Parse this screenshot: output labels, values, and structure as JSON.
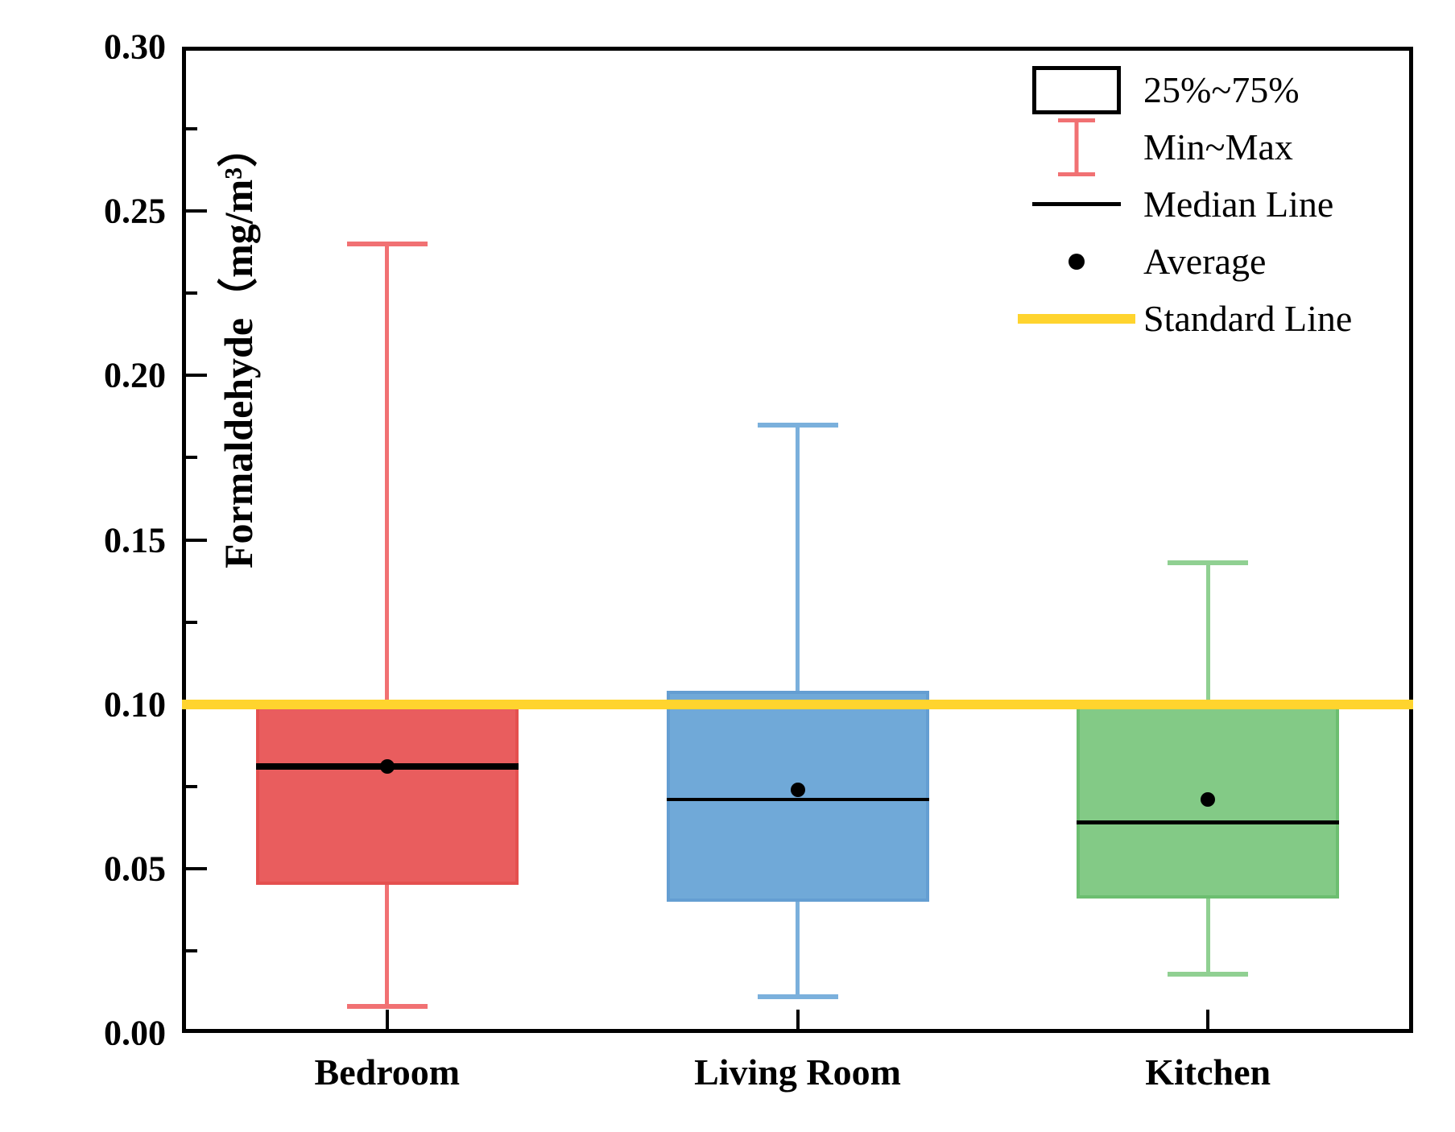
{
  "chart_data": {
    "type": "box",
    "title": "",
    "xlabel": "",
    "ylabel": "Formaldehyde（mg/m³）",
    "ylim": [
      0.0,
      0.3
    ],
    "ytick_step": 0.05,
    "ytick_minor_step": 0.025,
    "ytick_labels": [
      "0.00",
      "0.05",
      "0.10",
      "0.15",
      "0.20",
      "0.25",
      "0.30"
    ],
    "categories": [
      "Bedroom",
      "Living Room",
      "Kitchen"
    ],
    "series": [
      {
        "name": "Bedroom",
        "min": 0.008,
        "q1": 0.045,
        "median": 0.081,
        "mean": 0.081,
        "q3": 0.1,
        "max": 0.24,
        "fill": "#E95D5E",
        "edge": "#E4504F",
        "whisker": "#F17173"
      },
      {
        "name": "Living Room",
        "min": 0.011,
        "q1": 0.04,
        "median": 0.071,
        "mean": 0.074,
        "q3": 0.104,
        "max": 0.185,
        "fill": "#70A9D8",
        "edge": "#649ED2",
        "whisker": "#7BB0DC"
      },
      {
        "name": "Kitchen",
        "min": 0.018,
        "q1": 0.041,
        "median": 0.064,
        "mean": 0.071,
        "q3": 0.1,
        "max": 0.143,
        "fill": "#83CA86",
        "edge": "#6CBE70",
        "whisker": "#90D092"
      }
    ],
    "standard_line": {
      "value": 0.1,
      "color": "#FFD42E"
    },
    "legend": [
      {
        "type": "box",
        "label": "25%~75%",
        "color": "#000000"
      },
      {
        "type": "errorbar",
        "label": "Min~Max",
        "color": "#F17173"
      },
      {
        "type": "line",
        "label": "Median Line",
        "color": "#000000"
      },
      {
        "type": "dot",
        "label": "Average",
        "color": "#000000"
      },
      {
        "type": "thickline",
        "label": "Standard Line",
        "color": "#FFD42E"
      }
    ],
    "legend_position": "top-right",
    "grid": false,
    "axis_color": "#000000",
    "background_color": "#FFFFFF"
  }
}
